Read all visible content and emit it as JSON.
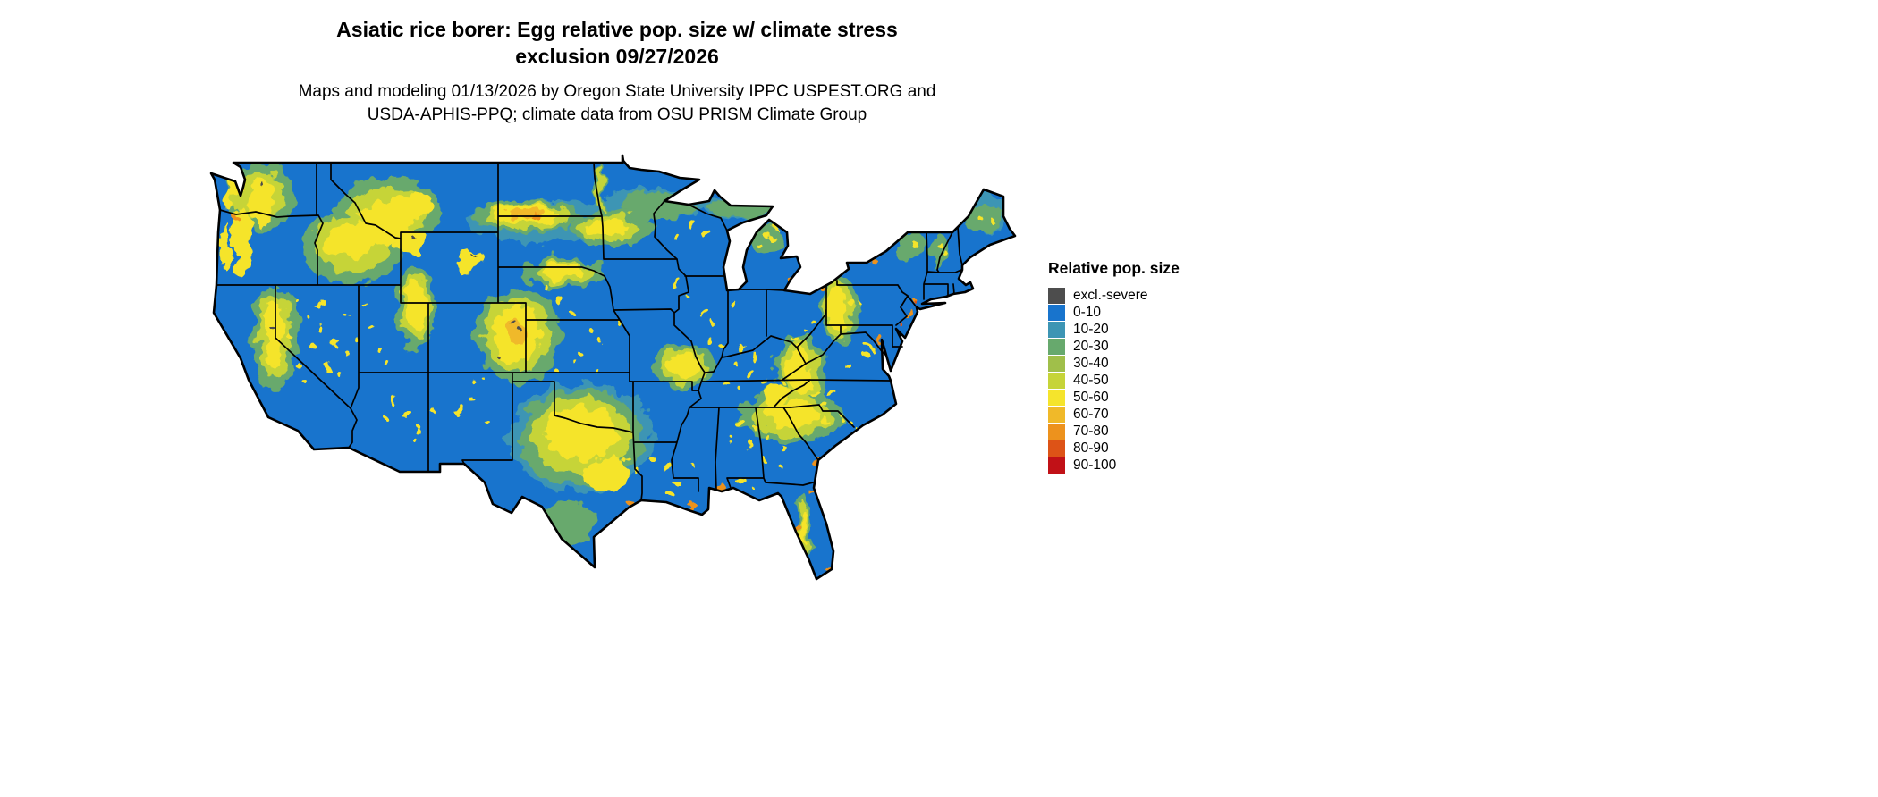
{
  "header": {
    "title_line1": "Asiatic rice borer: Egg relative pop. size w/ climate stress",
    "title_line2": "exclusion 09/27/2026",
    "subtitle_line1": "Maps and modeling 01/13/2026 by Oregon State University IPPC USPEST.ORG and",
    "subtitle_line2": "USDA-APHIS-PPQ; climate data from OSU PRISM Climate Group"
  },
  "legend": {
    "title": "Relative pop. size",
    "items": [
      {
        "label": "excl.-severe",
        "color": "#4d4d4d"
      },
      {
        "label": "0-10",
        "color": "#1874cd"
      },
      {
        "label": "10-20",
        "color": "#3d95b4"
      },
      {
        "label": "20-30",
        "color": "#67a96d"
      },
      {
        "label": "30-40",
        "color": "#a0bf4a"
      },
      {
        "label": "40-50",
        "color": "#c6d438"
      },
      {
        "label": "50-60",
        "color": "#f5e42c"
      },
      {
        "label": "60-70",
        "color": "#f0b929"
      },
      {
        "label": "70-80",
        "color": "#ed921d"
      },
      {
        "label": "80-90",
        "color": "#dd5317"
      },
      {
        "label": "90-100",
        "color": "#c11117"
      }
    ]
  },
  "map": {
    "base_color": "#1874cd",
    "border_color": "#000000"
  }
}
